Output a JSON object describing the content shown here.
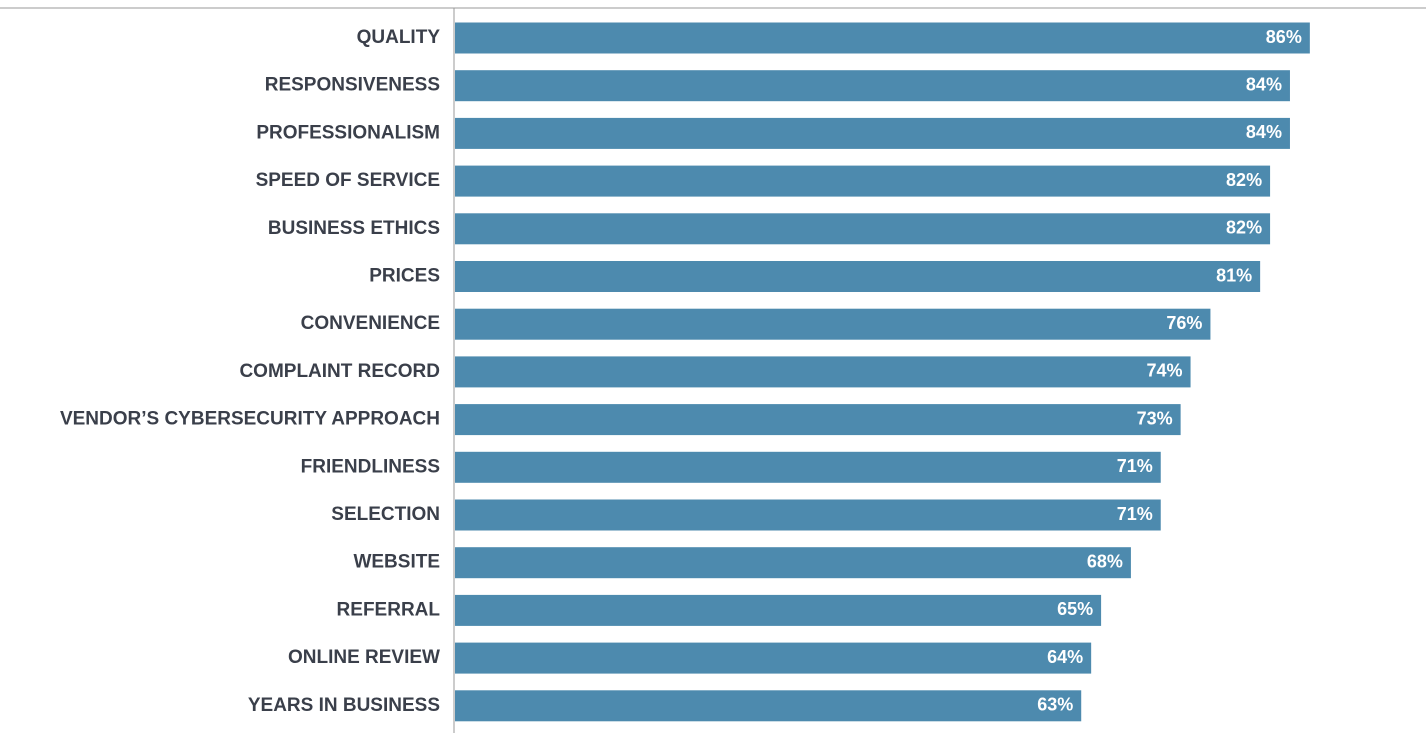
{
  "chart_data": {
    "type": "bar",
    "orientation": "horizontal",
    "categories": [
      "QUALITY",
      "RESPONSIVENESS",
      "PROFESSIONALISM",
      "SPEED OF SERVICE",
      "BUSINESS ETHICS",
      "PRICES",
      "CONVENIENCE",
      "COMPLAINT RECORD",
      "VENDOR’S CYBERSECURITY APPROACH",
      "FRIENDLINESS",
      "SELECTION",
      "WEBSITE",
      "REFERRAL",
      "ONLINE REVIEW",
      "YEARS IN BUSINESS"
    ],
    "values": [
      86,
      84,
      84,
      82,
      82,
      81,
      76,
      74,
      73,
      71,
      71,
      68,
      65,
      64,
      63
    ],
    "value_labels": [
      "86%",
      "84%",
      "84%",
      "82%",
      "82%",
      "81%",
      "76%",
      "74%",
      "73%",
      "71%",
      "71%",
      "68%",
      "65%",
      "64%",
      "63%"
    ],
    "color": "#4d8aae",
    "xlim": [
      0,
      100
    ]
  }
}
